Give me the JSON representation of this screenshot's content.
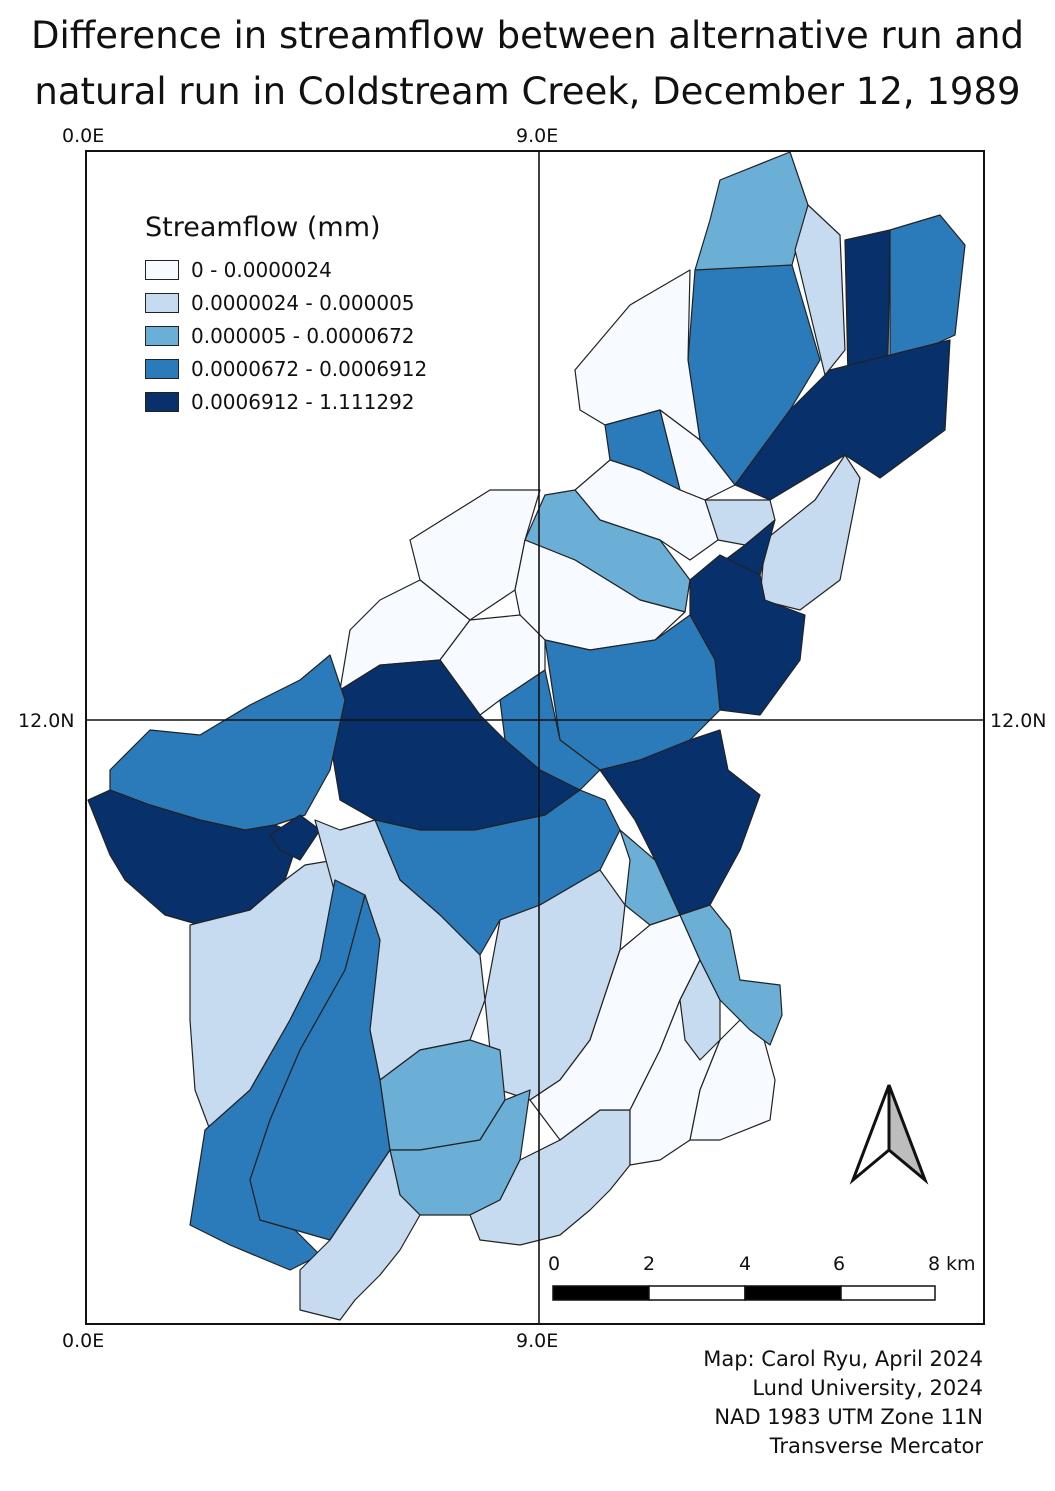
{
  "title": {
    "line1": "Difference in streamflow between alternative run  and",
    "line2": "natural run in Coldstream Creek,  December 12, 1989"
  },
  "grid": {
    "top_left": "0.0E",
    "top_mid": "9.0E",
    "bottom_left": "0.0E",
    "bottom_mid": "9.0E",
    "left_mid": "12.0N",
    "right_mid": "12.0N"
  },
  "legend": {
    "title": "Streamflow (mm)",
    "classes": [
      {
        "label": "0 - 0.0000024",
        "color": "#f7fbff"
      },
      {
        "label": "0.0000024 - 0.000005",
        "color": "#c6dbef"
      },
      {
        "label": "0.000005 - 0.0000672",
        "color": "#6baed6"
      },
      {
        "label": "0.0000672 - 0.0006912",
        "color": "#2b7bba"
      },
      {
        "label": "0.0006912 - 1.111292",
        "color": "#08306b"
      }
    ]
  },
  "scale_bar": {
    "ticks": [
      "0",
      "2",
      "4",
      "6",
      "8"
    ],
    "unit": "km"
  },
  "north_arrow": "north-arrow-icon",
  "credits": [
    "Map: Carol Ryu,  April 2024",
    "Lund University,  2024",
    "NAD 1983 UTM Zone 11N",
    "Transverse Mercator"
  ]
}
